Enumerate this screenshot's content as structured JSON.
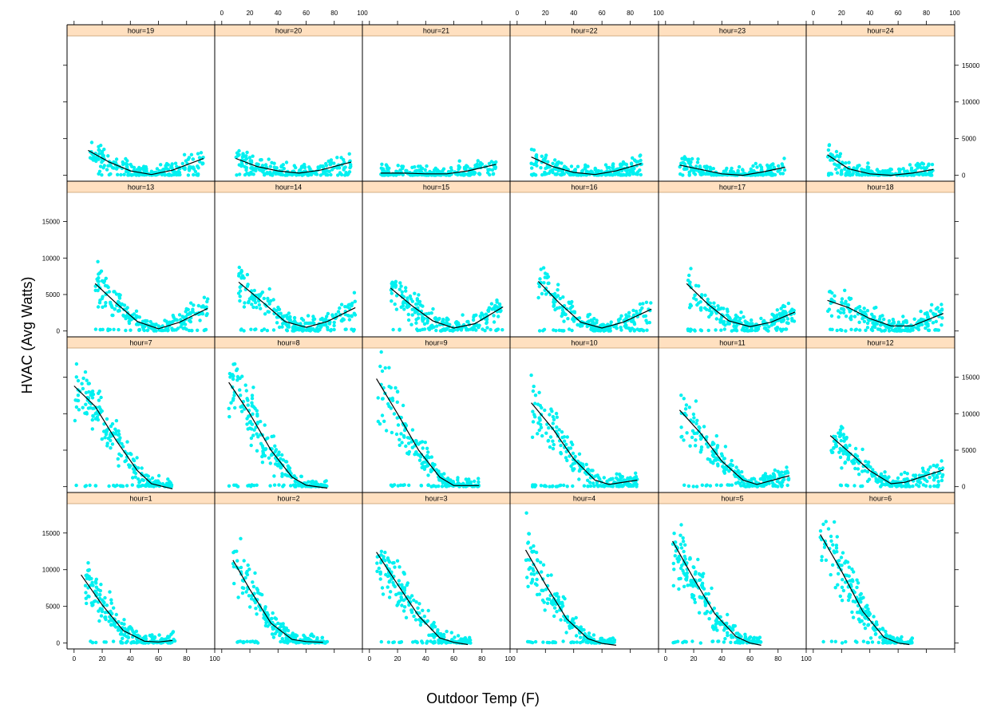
{
  "chart_data": {
    "type": "scatter",
    "xlabel": "Outdoor Temp (F)",
    "ylabel": "HVAC (Avg Watts)",
    "xlim": [
      -5,
      100
    ],
    "ylim": [
      -800,
      19000
    ],
    "x_ticks": [
      0,
      20,
      40,
      60,
      80,
      100
    ],
    "y_ticks": [
      0,
      5000,
      10000,
      15000
    ],
    "colors": {
      "points": "#00f0f0",
      "smooth": "#000000",
      "strip": "#ffe0c0",
      "strip_border": "#c8a070"
    },
    "grid": false,
    "legend": "none",
    "panels": [
      {
        "label": "hour=1",
        "point_range": [
          8,
          72
        ],
        "curve": [
          [
            5,
            9300
          ],
          [
            20,
            5200
          ],
          [
            35,
            1700
          ],
          [
            50,
            250
          ],
          [
            60,
            150
          ],
          [
            70,
            350
          ]
        ]
      },
      {
        "label": "hour=2",
        "point_range": [
          8,
          75
        ],
        "curve": [
          [
            8,
            11300
          ],
          [
            20,
            7300
          ],
          [
            35,
            2700
          ],
          [
            50,
            500
          ],
          [
            60,
            200
          ],
          [
            72,
            100
          ]
        ]
      },
      {
        "label": "hour=3",
        "point_range": [
          5,
          72
        ],
        "curve": [
          [
            5,
            12400
          ],
          [
            20,
            8000
          ],
          [
            35,
            3700
          ],
          [
            50,
            700
          ],
          [
            60,
            100
          ],
          [
            70,
            -200
          ]
        ]
      },
      {
        "label": "hour=4",
        "point_range": [
          6,
          70
        ],
        "curve": [
          [
            6,
            12700
          ],
          [
            20,
            8000
          ],
          [
            35,
            3300
          ],
          [
            50,
            600
          ],
          [
            60,
            -50
          ],
          [
            70,
            -300
          ]
        ]
      },
      {
        "label": "hour=5",
        "point_range": [
          5,
          68
        ],
        "curve": [
          [
            5,
            13900
          ],
          [
            20,
            8800
          ],
          [
            35,
            4000
          ],
          [
            50,
            900
          ],
          [
            60,
            0
          ],
          [
            68,
            -300
          ]
        ]
      },
      {
        "label": "hour=6",
        "point_range": [
          5,
          70
        ],
        "curve": [
          [
            5,
            14800
          ],
          [
            20,
            9800
          ],
          [
            35,
            4300
          ],
          [
            50,
            800
          ],
          [
            60,
            0
          ],
          [
            68,
            -200
          ]
        ]
      },
      {
        "label": "hour=7",
        "point_range": [
          0,
          70
        ],
        "curve": [
          [
            0,
            13800
          ],
          [
            15,
            11000
          ],
          [
            30,
            6300
          ],
          [
            45,
            2200
          ],
          [
            55,
            400
          ],
          [
            70,
            -300
          ]
        ]
      },
      {
        "label": "hour=8",
        "point_range": [
          5,
          75
        ],
        "curve": [
          [
            5,
            14300
          ],
          [
            20,
            10000
          ],
          [
            35,
            5000
          ],
          [
            50,
            1300
          ],
          [
            60,
            200
          ],
          [
            75,
            -200
          ]
        ]
      },
      {
        "label": "hour=9",
        "point_range": [
          5,
          78
        ],
        "curve": [
          [
            5,
            14800
          ],
          [
            20,
            10000
          ],
          [
            35,
            5000
          ],
          [
            50,
            1300
          ],
          [
            60,
            150
          ],
          [
            78,
            150
          ]
        ]
      },
      {
        "label": "hour=10",
        "point_range": [
          10,
          85
        ],
        "curve": [
          [
            10,
            11500
          ],
          [
            25,
            8000
          ],
          [
            40,
            3800
          ],
          [
            55,
            900
          ],
          [
            65,
            300
          ],
          [
            85,
            900
          ]
        ]
      },
      {
        "label": "hour=11",
        "point_range": [
          10,
          88
        ],
        "curve": [
          [
            10,
            10500
          ],
          [
            25,
            7300
          ],
          [
            40,
            3500
          ],
          [
            55,
            900
          ],
          [
            65,
            300
          ],
          [
            88,
            1500
          ]
        ]
      },
      {
        "label": "hour=12",
        "point_range": [
          12,
          92
        ],
        "curve": [
          [
            12,
            7000
          ],
          [
            25,
            4800
          ],
          [
            40,
            2200
          ],
          [
            55,
            400
          ],
          [
            65,
            600
          ],
          [
            92,
            2300
          ]
        ]
      },
      {
        "label": "hour=13",
        "point_range": [
          15,
          95
        ],
        "curve": [
          [
            15,
            6500
          ],
          [
            30,
            3800
          ],
          [
            45,
            1300
          ],
          [
            60,
            300
          ],
          [
            75,
            1200
          ],
          [
            95,
            3100
          ]
        ]
      },
      {
        "label": "hour=14",
        "point_range": [
          12,
          95
        ],
        "curve": [
          [
            12,
            6700
          ],
          [
            30,
            3800
          ],
          [
            45,
            1300
          ],
          [
            60,
            500
          ],
          [
            75,
            1300
          ],
          [
            95,
            3200
          ]
        ]
      },
      {
        "label": "hour=15",
        "point_range": [
          15,
          95
        ],
        "curve": [
          [
            15,
            5900
          ],
          [
            30,
            3500
          ],
          [
            45,
            1400
          ],
          [
            60,
            400
          ],
          [
            75,
            1000
          ],
          [
            95,
            3300
          ]
        ]
      },
      {
        "label": "hour=16",
        "point_range": [
          15,
          95
        ],
        "curve": [
          [
            15,
            6800
          ],
          [
            30,
            3800
          ],
          [
            45,
            1200
          ],
          [
            60,
            400
          ],
          [
            75,
            1200
          ],
          [
            95,
            3000
          ]
        ]
      },
      {
        "label": "hour=17",
        "point_range": [
          15,
          92
        ],
        "curve": [
          [
            15,
            6500
          ],
          [
            30,
            3700
          ],
          [
            45,
            1400
          ],
          [
            60,
            600
          ],
          [
            75,
            1200
          ],
          [
            92,
            2600
          ]
        ]
      },
      {
        "label": "hour=18",
        "point_range": [
          10,
          92
        ],
        "curve": [
          [
            10,
            4200
          ],
          [
            25,
            3200
          ],
          [
            40,
            1700
          ],
          [
            55,
            700
          ],
          [
            70,
            700
          ],
          [
            92,
            2400
          ]
        ]
      },
      {
        "label": "hour=19",
        "point_range": [
          10,
          92
        ],
        "curve": [
          [
            10,
            3400
          ],
          [
            25,
            1800
          ],
          [
            40,
            600
          ],
          [
            55,
            100
          ],
          [
            70,
            700
          ],
          [
            92,
            2300
          ]
        ]
      },
      {
        "label": "hour=20",
        "point_range": [
          10,
          92
        ],
        "curve": [
          [
            10,
            2300
          ],
          [
            25,
            1200
          ],
          [
            40,
            600
          ],
          [
            55,
            300
          ],
          [
            70,
            700
          ],
          [
            92,
            1800
          ]
        ]
      },
      {
        "label": "hour=21",
        "point_range": [
          8,
          90
        ],
        "curve": [
          [
            8,
            300
          ],
          [
            25,
            300
          ],
          [
            40,
            200
          ],
          [
            55,
            200
          ],
          [
            70,
            600
          ],
          [
            90,
            1500
          ]
        ]
      },
      {
        "label": "hour=22",
        "point_range": [
          10,
          88
        ],
        "curve": [
          [
            10,
            2500
          ],
          [
            25,
            1200
          ],
          [
            40,
            400
          ],
          [
            55,
            100
          ],
          [
            70,
            600
          ],
          [
            88,
            1600
          ]
        ]
      },
      {
        "label": "hour=23",
        "point_range": [
          10,
          85
        ],
        "curve": [
          [
            10,
            1400
          ],
          [
            25,
            800
          ],
          [
            40,
            200
          ],
          [
            55,
            0
          ],
          [
            70,
            500
          ],
          [
            85,
            1100
          ]
        ]
      },
      {
        "label": "hour=24",
        "point_range": [
          10,
          85
        ],
        "curve": [
          [
            10,
            2800
          ],
          [
            25,
            900
          ],
          [
            40,
            200
          ],
          [
            55,
            0
          ],
          [
            70,
            300
          ],
          [
            85,
            800
          ]
        ]
      }
    ]
  }
}
